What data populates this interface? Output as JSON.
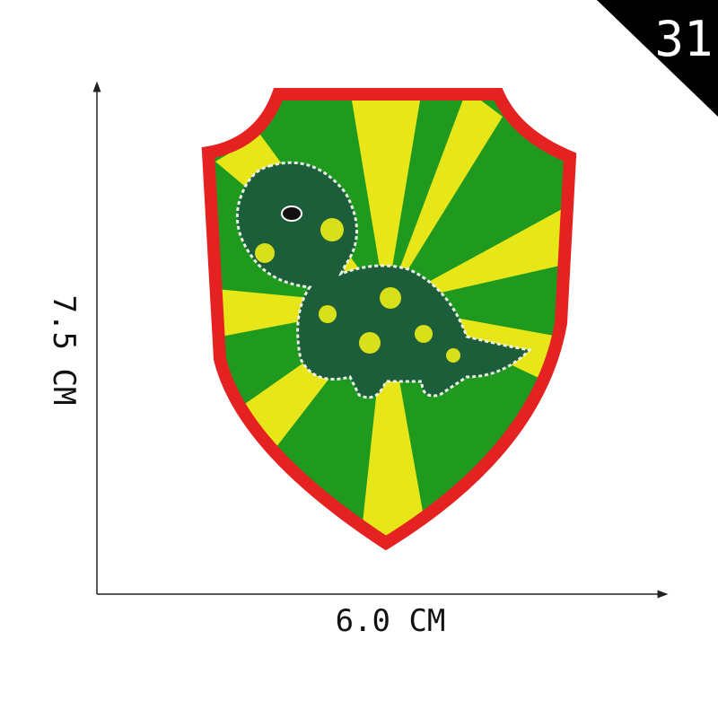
{
  "badge": "31",
  "height_label": "7.5 CM",
  "width_label": "6.0 CM"
}
